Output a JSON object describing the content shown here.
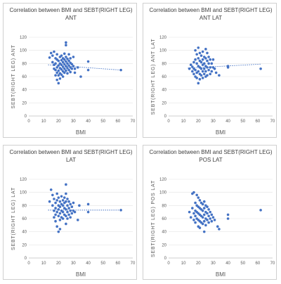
{
  "chart_data": [
    {
      "type": "scatter",
      "title": "Correlation between BMI and SEBT(RIGHT LEG)",
      "subtitle": "ANT",
      "xlabel": "BMI",
      "ylabel": "SEBT(RIGHT LEG) ANT",
      "xlim": [
        0,
        70
      ],
      "ylim": [
        0,
        120
      ],
      "xticks": [
        "0",
        "10",
        "20",
        "30",
        "40",
        "50",
        "60",
        "70"
      ],
      "yticks": [
        "0",
        "20",
        "40",
        "60",
        "80",
        "100",
        "120"
      ],
      "trendline": {
        "style": "dotted",
        "x": [
          13,
          62
        ],
        "y": [
          78,
          70
        ]
      },
      "color": "#4472c4",
      "points": [
        [
          14,
          89
        ],
        [
          15,
          96
        ],
        [
          16,
          92
        ],
        [
          16,
          82
        ],
        [
          17,
          78
        ],
        [
          17,
          72
        ],
        [
          17,
          98
        ],
        [
          18,
          88
        ],
        [
          18,
          80
        ],
        [
          18,
          70
        ],
        [
          18,
          62
        ],
        [
          19,
          86
        ],
        [
          19,
          74
        ],
        [
          19,
          66
        ],
        [
          19,
          94
        ],
        [
          19,
          55
        ],
        [
          20,
          84
        ],
        [
          20,
          77
        ],
        [
          20,
          69
        ],
        [
          20,
          62
        ],
        [
          20,
          50
        ],
        [
          21,
          90
        ],
        [
          21,
          80
        ],
        [
          21,
          73
        ],
        [
          21,
          65
        ],
        [
          21,
          57
        ],
        [
          22,
          92
        ],
        [
          22,
          85
        ],
        [
          22,
          78
        ],
        [
          22,
          71
        ],
        [
          22,
          63
        ],
        [
          23,
          88
        ],
        [
          23,
          82
        ],
        [
          23,
          75
        ],
        [
          23,
          68
        ],
        [
          23,
          60
        ],
        [
          24,
          95
        ],
        [
          24,
          86
        ],
        [
          24,
          79
        ],
        [
          24,
          72
        ],
        [
          24,
          66
        ],
        [
          25,
          112
        ],
        [
          25,
          108
        ],
        [
          25,
          90
        ],
        [
          25,
          83
        ],
        [
          25,
          76
        ],
        [
          25,
          69
        ],
        [
          26,
          87
        ],
        [
          26,
          80
        ],
        [
          26,
          73
        ],
        [
          26,
          65
        ],
        [
          27,
          94
        ],
        [
          27,
          84
        ],
        [
          27,
          77
        ],
        [
          27,
          70
        ],
        [
          28,
          88
        ],
        [
          28,
          81
        ],
        [
          28,
          74
        ],
        [
          28,
          67
        ],
        [
          29,
          79
        ],
        [
          29,
          72
        ],
        [
          30,
          90
        ],
        [
          30,
          76
        ],
        [
          31,
          72
        ],
        [
          31,
          66
        ],
        [
          33,
          74
        ],
        [
          35,
          60
        ],
        [
          40,
          83
        ],
        [
          40,
          70
        ],
        [
          62,
          70
        ]
      ]
    },
    {
      "type": "scatter",
      "title": "Correlation between BMI and SEBT(RIGHT LEG)",
      "subtitle": "ANT LAT",
      "xlabel": "BMI",
      "ylabel": "SEBT(RIGHT LEG) ANT LAT",
      "xlim": [
        0,
        70
      ],
      "ylim": [
        0,
        120
      ],
      "xticks": [
        "0",
        "10",
        "20",
        "30",
        "40",
        "50",
        "60",
        "70"
      ],
      "yticks": [
        "0",
        "20",
        "40",
        "60",
        "80",
        "100",
        "120"
      ],
      "trendline": {
        "style": "dotted",
        "x": [
          13,
          62
        ],
        "y": [
          73,
          79
        ]
      },
      "color": "#4472c4",
      "points": [
        [
          14,
          72
        ],
        [
          15,
          78
        ],
        [
          16,
          68
        ],
        [
          16,
          75
        ],
        [
          17,
          82
        ],
        [
          17,
          64
        ],
        [
          17,
          72
        ],
        [
          18,
          100
        ],
        [
          18,
          86
        ],
        [
          18,
          70
        ],
        [
          18,
          60
        ],
        [
          19,
          94
        ],
        [
          19,
          80
        ],
        [
          19,
          66
        ],
        [
          19,
          58
        ],
        [
          20,
          104
        ],
        [
          20,
          88
        ],
        [
          20,
          76
        ],
        [
          20,
          68
        ],
        [
          20,
          50
        ],
        [
          21,
          96
        ],
        [
          21,
          84
        ],
        [
          21,
          74
        ],
        [
          21,
          64
        ],
        [
          21,
          56
        ],
        [
          22,
          92
        ],
        [
          22,
          82
        ],
        [
          22,
          72
        ],
        [
          22,
          62
        ],
        [
          23,
          98
        ],
        [
          23,
          86
        ],
        [
          23,
          78
        ],
        [
          23,
          68
        ],
        [
          23,
          58
        ],
        [
          24,
          90
        ],
        [
          24,
          80
        ],
        [
          24,
          72
        ],
        [
          24,
          64
        ],
        [
          25,
          102
        ],
        [
          25,
          88
        ],
        [
          25,
          76
        ],
        [
          25,
          68
        ],
        [
          25,
          60
        ],
        [
          26,
          96
        ],
        [
          26,
          84
        ],
        [
          26,
          74
        ],
        [
          26,
          62
        ],
        [
          27,
          90
        ],
        [
          27,
          80
        ],
        [
          27,
          70
        ],
        [
          28,
          86
        ],
        [
          28,
          74
        ],
        [
          28,
          64
        ],
        [
          29,
          80
        ],
        [
          29,
          68
        ],
        [
          30,
          86
        ],
        [
          30,
          74
        ],
        [
          31,
          72
        ],
        [
          32,
          66
        ],
        [
          34,
          62
        ],
        [
          40,
          76
        ],
        [
          40,
          74
        ],
        [
          62,
          72
        ]
      ]
    },
    {
      "type": "scatter",
      "title": "Correlation between BMI and SEBT(RIGHT LEG)",
      "subtitle": "LAT",
      "xlabel": "BMI",
      "ylabel": "SEBT(RIGHT LEG) LAT",
      "xlim": [
        0,
        70
      ],
      "ylim": [
        0,
        120
      ],
      "xticks": [
        "0",
        "10",
        "20",
        "30",
        "40",
        "50",
        "60",
        "70"
      ],
      "yticks": [
        "0",
        "20",
        "40",
        "60",
        "80",
        "100",
        "120"
      ],
      "trendline": {
        "style": "dotted",
        "x": [
          13,
          62
        ],
        "y": [
          73,
          73
        ]
      },
      "color": "#4472c4",
      "points": [
        [
          14,
          86
        ],
        [
          15,
          104
        ],
        [
          16,
          96
        ],
        [
          16,
          80
        ],
        [
          17,
          72
        ],
        [
          17,
          62
        ],
        [
          17,
          90
        ],
        [
          18,
          84
        ],
        [
          18,
          76
        ],
        [
          18,
          66
        ],
        [
          18,
          56
        ],
        [
          19,
          98
        ],
        [
          19,
          88
        ],
        [
          19,
          70
        ],
        [
          19,
          48
        ],
        [
          20,
          92
        ],
        [
          20,
          80
        ],
        [
          20,
          74
        ],
        [
          20,
          64
        ],
        [
          20,
          40
        ],
        [
          21,
          86
        ],
        [
          21,
          78
        ],
        [
          21,
          68
        ],
        [
          21,
          58
        ],
        [
          21,
          44
        ],
        [
          22,
          94
        ],
        [
          22,
          82
        ],
        [
          22,
          72
        ],
        [
          22,
          62
        ],
        [
          23,
          88
        ],
        [
          23,
          80
        ],
        [
          23,
          70
        ],
        [
          23,
          60
        ],
        [
          24,
          92
        ],
        [
          24,
          84
        ],
        [
          24,
          76
        ],
        [
          24,
          66
        ],
        [
          25,
          112
        ],
        [
          25,
          98
        ],
        [
          25,
          86
        ],
        [
          25,
          74
        ],
        [
          25,
          64
        ],
        [
          25,
          52
        ],
        [
          26,
          90
        ],
        [
          26,
          80
        ],
        [
          26,
          70
        ],
        [
          26,
          60
        ],
        [
          27,
          86
        ],
        [
          27,
          76
        ],
        [
          27,
          66
        ],
        [
          28,
          82
        ],
        [
          28,
          72
        ],
        [
          28,
          62
        ],
        [
          29,
          78
        ],
        [
          29,
          68
        ],
        [
          30,
          84
        ],
        [
          30,
          72
        ],
        [
          31,
          70
        ],
        [
          33,
          58
        ],
        [
          34,
          80
        ],
        [
          40,
          82
        ],
        [
          40,
          70
        ],
        [
          62,
          73
        ]
      ]
    },
    {
      "type": "scatter",
      "title": "Correlation between BMI and SEBT(RIGHT LEG)",
      "subtitle": "POS LAT",
      "xlabel": "BMI",
      "ylabel": "SEBT(RIGHT LEG) POS LAT",
      "xlim": [
        0,
        70
      ],
      "ylim": [
        0,
        120
      ],
      "xticks": [
        "0",
        "10",
        "20",
        "30",
        "40",
        "50",
        "60",
        "70"
      ],
      "yticks": [
        "0",
        "20",
        "40",
        "60",
        "80",
        "100",
        "120"
      ],
      "trendline": null,
      "color": "#4472c4",
      "points": [
        [
          14,
          70
        ],
        [
          15,
          62
        ],
        [
          16,
          76
        ],
        [
          16,
          98
        ],
        [
          17,
          68
        ],
        [
          17,
          58
        ],
        [
          17,
          100
        ],
        [
          18,
          84
        ],
        [
          18,
          72
        ],
        [
          18,
          64
        ],
        [
          18,
          54
        ],
        [
          19,
          96
        ],
        [
          19,
          80
        ],
        [
          19,
          70
        ],
        [
          19,
          60
        ],
        [
          20,
          92
        ],
        [
          20,
          78
        ],
        [
          20,
          68
        ],
        [
          20,
          58
        ],
        [
          20,
          48
        ],
        [
          21,
          88
        ],
        [
          21,
          76
        ],
        [
          21,
          66
        ],
        [
          21,
          56
        ],
        [
          21,
          46
        ],
        [
          22,
          84
        ],
        [
          22,
          74
        ],
        [
          22,
          64
        ],
        [
          22,
          54
        ],
        [
          23,
          82
        ],
        [
          23,
          72
        ],
        [
          23,
          62
        ],
        [
          23,
          52
        ],
        [
          24,
          86
        ],
        [
          24,
          76
        ],
        [
          24,
          66
        ],
        [
          24,
          56
        ],
        [
          24,
          40
        ],
        [
          25,
          80
        ],
        [
          25,
          70
        ],
        [
          25,
          60
        ],
        [
          25,
          50
        ],
        [
          26,
          78
        ],
        [
          26,
          68
        ],
        [
          26,
          58
        ],
        [
          27,
          74
        ],
        [
          27,
          64
        ],
        [
          27,
          54
        ],
        [
          28,
          70
        ],
        [
          28,
          60
        ],
        [
          29,
          66
        ],
        [
          29,
          56
        ],
        [
          30,
          62
        ],
        [
          31,
          58
        ],
        [
          33,
          48
        ],
        [
          34,
          44
        ],
        [
          40,
          66
        ],
        [
          40,
          60
        ],
        [
          62,
          73
        ]
      ]
    }
  ]
}
